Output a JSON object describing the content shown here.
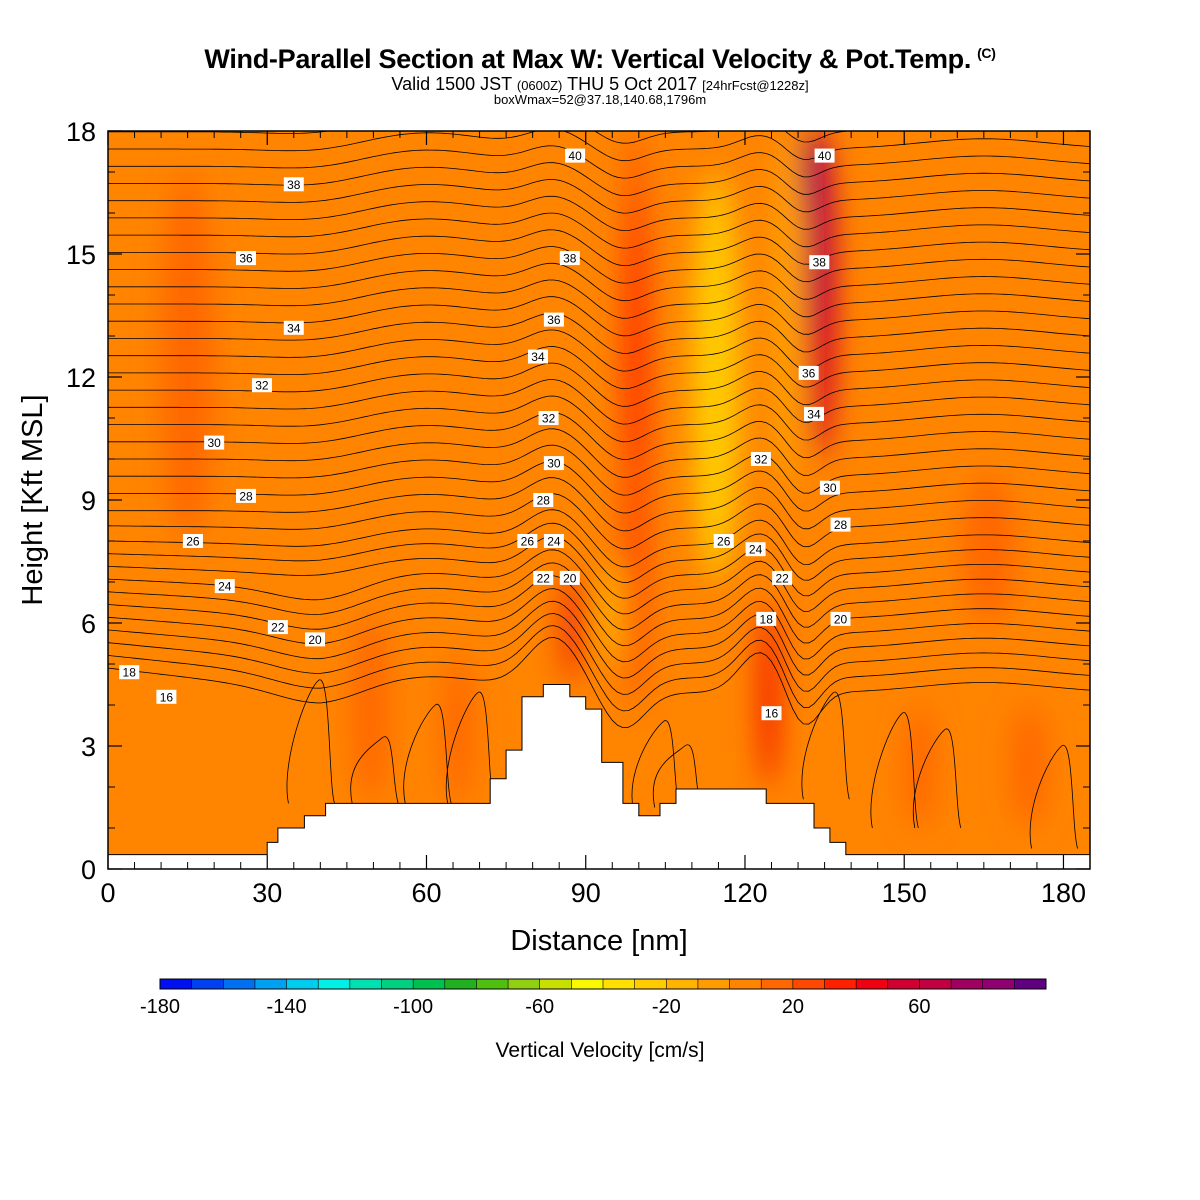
{
  "header": {
    "title": "Wind-Parallel Section at Max W: Vertical Velocity & Pot.Temp.",
    "copyright": "(C)",
    "valid_prefix": "Valid 1500 JST",
    "valid_utc": "(0600Z)",
    "valid_date": "THU 5 Oct 2017",
    "forecast": "[24hrFcst@1228z]",
    "box_info": "boxWmax=52@37.18,140.68,1796m"
  },
  "chart_data": {
    "type": "heatmap",
    "xlabel": "Distance [nm]",
    "ylabel": "Height [Kft MSL]",
    "xlim": [
      0,
      185
    ],
    "ylim": [
      0,
      18
    ],
    "x_ticks": [
      0,
      30,
      60,
      90,
      120,
      150,
      180
    ],
    "y_ticks": [
      0,
      3,
      6,
      9,
      12,
      15,
      18
    ],
    "x_tick_labels": [
      "0",
      "30",
      "60",
      "90",
      "120",
      "150",
      "180"
    ],
    "y_tick_labels": [
      "0",
      "3",
      "6",
      "9",
      "12",
      "15",
      "18"
    ],
    "colorbar": {
      "label": "Vertical Velocity [cm/s]",
      "min": -180,
      "max": 90,
      "step": 10,
      "tick_values": [
        -180,
        -140,
        -100,
        -60,
        -20,
        20,
        60
      ],
      "tick_labels": [
        "-180",
        "-140",
        "-100",
        "-60",
        "-20",
        "20",
        "60"
      ],
      "colors": [
        "#0010f0",
        "#0040f0",
        "#0070f0",
        "#00a0f0",
        "#00ccf0",
        "#00f0e6",
        "#00e0b0",
        "#00d080",
        "#00c050",
        "#20b020",
        "#50c010",
        "#90d010",
        "#c8e000",
        "#f8f800",
        "#ffe000",
        "#ffcc00",
        "#ffb400",
        "#ff9c00",
        "#ff8400",
        "#ff6800",
        "#ff4800",
        "#ff2000",
        "#f00010",
        "#d00030",
        "#c00040",
        "#a00060",
        "#900070",
        "#600080"
      ]
    },
    "terrain": [
      [
        0,
        0.35
      ],
      [
        30,
        0.35
      ],
      [
        30,
        0.65
      ],
      [
        32,
        0.65
      ],
      [
        32,
        1.0
      ],
      [
        37,
        1.0
      ],
      [
        37,
        1.3
      ],
      [
        41,
        1.3
      ],
      [
        41,
        1.6
      ],
      [
        46,
        1.6
      ],
      [
        72,
        1.6
      ],
      [
        72,
        2.2
      ],
      [
        75,
        2.2
      ],
      [
        75,
        2.9
      ],
      [
        78,
        2.9
      ],
      [
        78,
        4.2
      ],
      [
        82,
        4.2
      ],
      [
        82,
        4.5
      ],
      [
        87,
        4.5
      ],
      [
        87,
        4.2
      ],
      [
        90,
        4.2
      ],
      [
        90,
        3.9
      ],
      [
        93,
        3.9
      ],
      [
        93,
        2.6
      ],
      [
        97,
        2.6
      ],
      [
        97,
        1.6
      ],
      [
        100,
        1.6
      ],
      [
        100,
        1.3
      ],
      [
        104,
        1.3
      ],
      [
        104,
        1.6
      ],
      [
        107,
        1.6
      ],
      [
        107,
        1.95
      ],
      [
        124,
        1.95
      ],
      [
        124,
        1.6
      ],
      [
        133,
        1.6
      ],
      [
        133,
        1.0
      ],
      [
        136,
        1.0
      ],
      [
        136,
        0.65
      ],
      [
        139,
        0.65
      ],
      [
        139,
        0.35
      ],
      [
        185,
        0.35
      ]
    ],
    "w_features": [
      {
        "x": 0,
        "y": 0,
        "w": 185,
        "h": 18,
        "value": 0
      },
      {
        "x": 0,
        "y": 1.5,
        "w": 185,
        "h": 16.5,
        "value": 5
      },
      {
        "x": 46,
        "y": 1.6,
        "w": 7,
        "h": 4.6,
        "value": 10
      },
      {
        "x": 63,
        "y": 1.6,
        "w": 6,
        "h": 3.6,
        "value": 10
      },
      {
        "x": 80,
        "y": 3.0,
        "w": 6,
        "h": 15,
        "value": 5
      },
      {
        "x": 97,
        "y": 4.0,
        "w": 5,
        "h": 14,
        "value": 25
      },
      {
        "x": 98,
        "y": 10,
        "w": 3,
        "h": 6,
        "value": 35
      },
      {
        "x": 85,
        "y": 4.5,
        "w": 4,
        "h": 2.8,
        "value": 45
      },
      {
        "x": 110,
        "y": 7,
        "w": 9,
        "h": 10,
        "value": -25
      },
      {
        "x": 93,
        "y": 5.0,
        "w": 4,
        "h": 2.5,
        "value": -15
      },
      {
        "x": 123,
        "y": 2.0,
        "w": 3,
        "h": 4.5,
        "value": 40
      },
      {
        "x": 126,
        "y": 9,
        "w": 3,
        "h": 9,
        "value": -20
      },
      {
        "x": 132,
        "y": 10,
        "w": 5,
        "h": 8,
        "value": 50
      },
      {
        "x": 132,
        "y": 13,
        "w": 3,
        "h": 5,
        "value": 75
      },
      {
        "x": 131,
        "y": 16,
        "w": 2,
        "h": 2,
        "value": 80
      },
      {
        "x": 161,
        "y": 6.0,
        "w": 10,
        "h": 3.6,
        "value": 10
      },
      {
        "x": 170,
        "y": 1.0,
        "w": 7,
        "h": 3.0,
        "value": 15
      },
      {
        "x": 150,
        "y": 1.0,
        "w": 6,
        "h": 3.0,
        "value": 10
      },
      {
        "x": 10,
        "y": 8,
        "w": 10,
        "h": 9,
        "value": 10
      }
    ],
    "theta_contour_labels": [
      {
        "x": 4,
        "y": 4.8,
        "value": "18"
      },
      {
        "x": 11,
        "y": 4.2,
        "value": "16"
      },
      {
        "x": 16,
        "y": 8.0,
        "value": "26"
      },
      {
        "x": 22,
        "y": 6.9,
        "value": "24"
      },
      {
        "x": 20,
        "y": 10.4,
        "value": "30"
      },
      {
        "x": 26,
        "y": 9.1,
        "value": "28"
      },
      {
        "x": 29,
        "y": 11.8,
        "value": "32"
      },
      {
        "x": 26,
        "y": 14.9,
        "value": "36"
      },
      {
        "x": 35,
        "y": 13.2,
        "value": "34"
      },
      {
        "x": 35,
        "y": 16.7,
        "value": "38"
      },
      {
        "x": 32,
        "y": 5.9,
        "value": "22"
      },
      {
        "x": 39,
        "y": 5.6,
        "value": "20"
      },
      {
        "x": 79,
        "y": 8.0,
        "value": "26"
      },
      {
        "x": 82,
        "y": 7.1,
        "value": "22"
      },
      {
        "x": 84,
        "y": 8.0,
        "value": "24"
      },
      {
        "x": 87,
        "y": 7.1,
        "value": "20"
      },
      {
        "x": 82,
        "y": 9.0,
        "value": "28"
      },
      {
        "x": 84,
        "y": 9.9,
        "value": "30"
      },
      {
        "x": 83,
        "y": 11.0,
        "value": "32"
      },
      {
        "x": 81,
        "y": 12.5,
        "value": "34"
      },
      {
        "x": 84,
        "y": 13.4,
        "value": "36"
      },
      {
        "x": 87,
        "y": 14.9,
        "value": "38"
      },
      {
        "x": 88,
        "y": 17.4,
        "value": "40"
      },
      {
        "x": 116,
        "y": 8.0,
        "value": "26"
      },
      {
        "x": 122,
        "y": 7.8,
        "value": "24"
      },
      {
        "x": 127,
        "y": 7.1,
        "value": "22"
      },
      {
        "x": 124,
        "y": 6.1,
        "value": "18"
      },
      {
        "x": 125,
        "y": 3.8,
        "value": "16"
      },
      {
        "x": 123,
        "y": 10.0,
        "value": "32"
      },
      {
        "x": 132,
        "y": 12.1,
        "value": "36"
      },
      {
        "x": 133,
        "y": 11.1,
        "value": "34"
      },
      {
        "x": 134,
        "y": 14.8,
        "value": "38"
      },
      {
        "x": 135,
        "y": 17.4,
        "value": "40"
      },
      {
        "x": 136,
        "y": 9.3,
        "value": "30"
      },
      {
        "x": 138,
        "y": 8.4,
        "value": "28"
      },
      {
        "x": 138,
        "y": 6.1,
        "value": "20"
      }
    ]
  }
}
